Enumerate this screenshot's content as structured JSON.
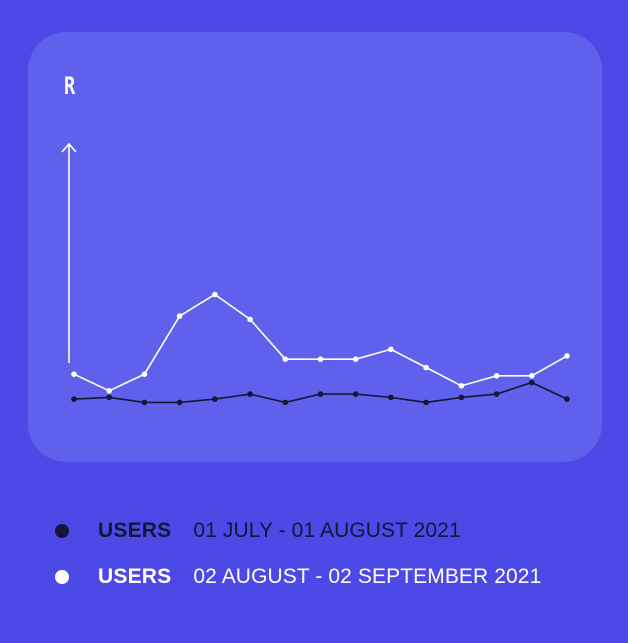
{
  "chart_data": {
    "type": "line",
    "ylabel": "R",
    "ylim": [
      0,
      100
    ],
    "x": [
      1,
      2,
      3,
      4,
      5,
      6,
      7,
      8,
      9,
      10,
      11,
      12,
      13,
      14,
      15
    ],
    "grid": false,
    "legend_position": "bottom",
    "series": [
      {
        "name": "USERS",
        "range": "01 JULY - 01 AUGUST 2021",
        "color": "#141735",
        "values": [
          9,
          10,
          7,
          7,
          9,
          12,
          7,
          12,
          12,
          10,
          7,
          10,
          12,
          19,
          9
        ]
      },
      {
        "name": "USERS",
        "range": "02 AUGUST - 02 SEPTEMBER 2021",
        "color": "#ffffff",
        "values": [
          24,
          14,
          24,
          59,
          72,
          57,
          33,
          33,
          33,
          39,
          28,
          17,
          23,
          23,
          35
        ]
      }
    ]
  }
}
